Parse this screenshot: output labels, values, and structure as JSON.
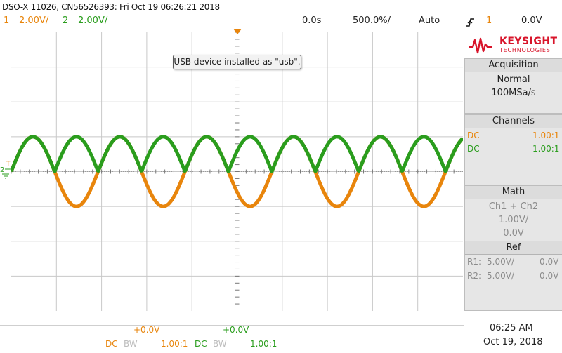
{
  "header": {
    "title": "DSO-X 11026, CN56526393: Fri Oct 19 06:26:21 2018"
  },
  "settings": {
    "ch1_num": "1",
    "ch1_scale": "2.00V/",
    "ch2_num": "2",
    "ch2_scale": "2.00V/",
    "time_offset": "0.0s",
    "time_scale": "500.0%/",
    "trigger_mode": "Auto",
    "trigger_slope_icon": "rising-edge-icon",
    "trigger_channel": "1",
    "trigger_level": "0.0V"
  },
  "markers": {
    "trigger_marker": "T",
    "ch2_marker": "2"
  },
  "toast": {
    "message": "USB device installed as \"usb\"."
  },
  "logo": {
    "brand": "KEYSIGHT",
    "sub": "TECHNOLOGIES"
  },
  "acquisition": {
    "heading": "Acquisition",
    "mode": "Normal",
    "rate": "100MSa/s"
  },
  "channels": {
    "heading": "Channels",
    "rows": [
      {
        "coupling": "DC",
        "value": "1.00:1"
      },
      {
        "coupling": "DC",
        "value": "1.00:1"
      }
    ]
  },
  "math": {
    "heading": "Math",
    "function": "Ch1 + Ch2",
    "scale": "1.00V/",
    "offset": "0.0V"
  },
  "ref": {
    "heading": "Ref",
    "rows": [
      {
        "label": "R1:",
        "scale": "5.00V/",
        "offset": "0.0V"
      },
      {
        "label": "R2:",
        "scale": "5.00V/",
        "offset": "0.0V"
      }
    ]
  },
  "bottom": {
    "ch1": {
      "offset": "+0.0V",
      "coupling": "DC",
      "bw": "BW",
      "probe": "1.00:1"
    },
    "ch2": {
      "offset": "+0.0V",
      "coupling": "DC",
      "bw": "BW",
      "probe": "1.00:1"
    },
    "time": "06:25 AM",
    "date": "Oct 19, 2018"
  },
  "chart_data": {
    "type": "line",
    "title": "",
    "xlabel": "",
    "ylabel": "",
    "x_divisions": 10,
    "y_divisions": 8,
    "volts_per_div": 2.0,
    "xlim": [
      0,
      10
    ],
    "ylim": [
      -4,
      4
    ],
    "series": [
      {
        "name": "Channel 1",
        "color": "#e8850c",
        "amplitude_div": 1.0,
        "shape": "sine",
        "cycles": 5.2,
        "phase_deg": 0
      },
      {
        "name": "Channel 2",
        "color": "#2a9d1d",
        "amplitude_div": 1.0,
        "shape": "abs-sine",
        "cycles": 5.2,
        "phase_deg": 0
      }
    ]
  }
}
